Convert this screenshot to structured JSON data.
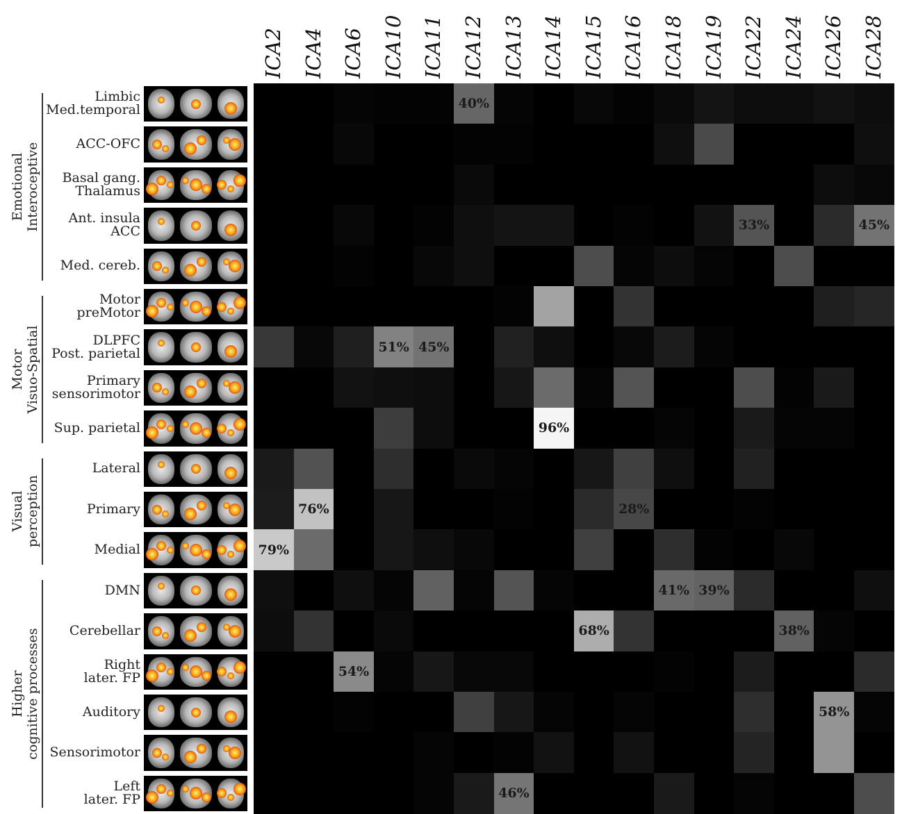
{
  "chart_data": {
    "type": "heatmap",
    "columns": [
      "ICA2",
      "ICA4",
      "ICA6",
      "ICA10",
      "ICA11",
      "ICA12",
      "ICA13",
      "ICA14",
      "ICA15",
      "ICA16",
      "ICA18",
      "ICA19",
      "ICA22",
      "ICA24",
      "ICA26",
      "ICA28"
    ],
    "groups": [
      {
        "label": [
          "Emotional",
          "Interoceptive"
        ],
        "rows": [
          0,
          4
        ]
      },
      {
        "label": [
          "Motor",
          "Visuo-Spatial"
        ],
        "rows": [
          5,
          8
        ]
      },
      {
        "label": [
          "Visual",
          "perception"
        ],
        "rows": [
          9,
          11
        ]
      },
      {
        "label": [
          "Higher",
          "cognitive processes"
        ],
        "rows": [
          12,
          17
        ]
      }
    ],
    "rows": [
      {
        "label": [
          "Limbic",
          "Med.temporal"
        ]
      },
      {
        "label": [
          "ACC-OFC"
        ]
      },
      {
        "label": [
          "Basal gang.",
          "Thalamus"
        ]
      },
      {
        "label": [
          "Ant. insula",
          "ACC"
        ]
      },
      {
        "label": [
          "Med. cereb."
        ]
      },
      {
        "label": [
          "Motor",
          "preMotor"
        ]
      },
      {
        "label": [
          "DLPFC",
          "Post. parietal"
        ]
      },
      {
        "label": [
          "Primary",
          "sensorimotor"
        ]
      },
      {
        "label": [
          "Sup. parietal"
        ]
      },
      {
        "label": [
          "Lateral"
        ]
      },
      {
        "label": [
          "Primary"
        ]
      },
      {
        "label": [
          "Medial"
        ]
      },
      {
        "label": [
          "DMN"
        ]
      },
      {
        "label": [
          "Cerebellar"
        ]
      },
      {
        "label": [
          "Right",
          "later. FP"
        ]
      },
      {
        "label": [
          "Auditory"
        ]
      },
      {
        "label": [
          "Sensorimotor"
        ]
      },
      {
        "label": [
          "Left",
          "later. FP"
        ]
      }
    ],
    "values": [
      [
        0,
        0,
        2,
        1,
        1,
        40,
        2,
        0,
        3,
        1,
        4,
        8,
        5,
        5,
        7,
        5
      ],
      [
        0,
        0,
        3,
        0,
        0,
        1,
        1,
        0,
        0,
        0,
        6,
        29,
        0,
        0,
        0,
        6
      ],
      [
        0,
        0,
        0,
        0,
        0,
        4,
        0,
        0,
        0,
        0,
        0,
        0,
        0,
        0,
        5,
        3
      ],
      [
        0,
        0,
        3,
        0,
        1,
        6,
        8,
        8,
        0,
        1,
        0,
        7,
        33,
        0,
        17,
        45
      ],
      [
        0,
        0,
        1,
        0,
        3,
        6,
        0,
        0,
        30,
        2,
        5,
        2,
        0,
        30,
        0,
        0
      ],
      [
        0,
        0,
        0,
        0,
        0,
        0,
        1,
        64,
        0,
        20,
        0,
        0,
        0,
        0,
        12,
        15
      ],
      [
        22,
        3,
        12,
        51,
        45,
        0,
        13,
        6,
        0,
        3,
        11,
        2,
        0,
        0,
        0,
        0
      ],
      [
        0,
        0,
        7,
        6,
        5,
        0,
        9,
        42,
        2,
        33,
        0,
        0,
        30,
        1,
        10,
        0
      ],
      [
        0,
        0,
        0,
        24,
        5,
        0,
        0,
        96,
        0,
        0,
        2,
        0,
        10,
        2,
        2,
        0
      ],
      [
        10,
        32,
        0,
        18,
        0,
        4,
        2,
        0,
        9,
        25,
        6,
        0,
        13,
        0,
        0,
        0
      ],
      [
        11,
        76,
        0,
        9,
        0,
        0,
        1,
        0,
        17,
        28,
        0,
        0,
        1,
        0,
        0,
        0
      ],
      [
        79,
        42,
        0,
        9,
        6,
        3,
        0,
        0,
        25,
        0,
        18,
        1,
        0,
        3,
        0,
        0
      ],
      [
        6,
        0,
        6,
        2,
        38,
        2,
        33,
        2,
        0,
        0,
        41,
        39,
        17,
        0,
        0,
        6
      ],
      [
        5,
        20,
        0,
        4,
        0,
        0,
        0,
        0,
        68,
        20,
        0,
        0,
        0,
        38,
        2,
        0
      ],
      [
        0,
        0,
        54,
        2,
        9,
        3,
        3,
        0,
        0,
        0,
        1,
        0,
        11,
        0,
        0,
        17
      ],
      [
        0,
        0,
        1,
        0,
        0,
        25,
        9,
        2,
        0,
        2,
        0,
        0,
        18,
        0,
        58,
        2
      ],
      [
        0,
        0,
        0,
        0,
        2,
        0,
        1,
        7,
        0,
        7,
        0,
        0,
        14,
        0,
        58,
        0
      ],
      [
        0,
        0,
        0,
        0,
        2,
        10,
        46,
        0,
        0,
        0,
        10,
        0,
        2,
        0,
        0,
        30
      ]
    ],
    "annotations": [
      {
        "row": 0,
        "col": 5,
        "text": "40%"
      },
      {
        "row": 3,
        "col": 12,
        "text": "33%"
      },
      {
        "row": 3,
        "col": 15,
        "text": "45%"
      },
      {
        "row": 6,
        "col": 3,
        "text": "51%"
      },
      {
        "row": 6,
        "col": 4,
        "text": "45%"
      },
      {
        "row": 8,
        "col": 7,
        "text": "96%"
      },
      {
        "row": 10,
        "col": 1,
        "text": "76%"
      },
      {
        "row": 10,
        "col": 9,
        "text": "28%"
      },
      {
        "row": 11,
        "col": 0,
        "text": "79%"
      },
      {
        "row": 12,
        "col": 10,
        "text": "41%"
      },
      {
        "row": 12,
        "col": 11,
        "text": "39%"
      },
      {
        "row": 13,
        "col": 8,
        "text": "68%"
      },
      {
        "row": 13,
        "col": 13,
        "text": "38%"
      },
      {
        "row": 14,
        "col": 2,
        "text": "54%"
      },
      {
        "row": 15,
        "col": 14,
        "text": "58%"
      },
      {
        "row": 17,
        "col": 6,
        "text": "46%"
      }
    ],
    "color_scale": {
      "min": 0,
      "max": 100,
      "low": "#000000",
      "high": "#ffffff"
    },
    "row_thumbnails": "brain-activation-maps"
  }
}
